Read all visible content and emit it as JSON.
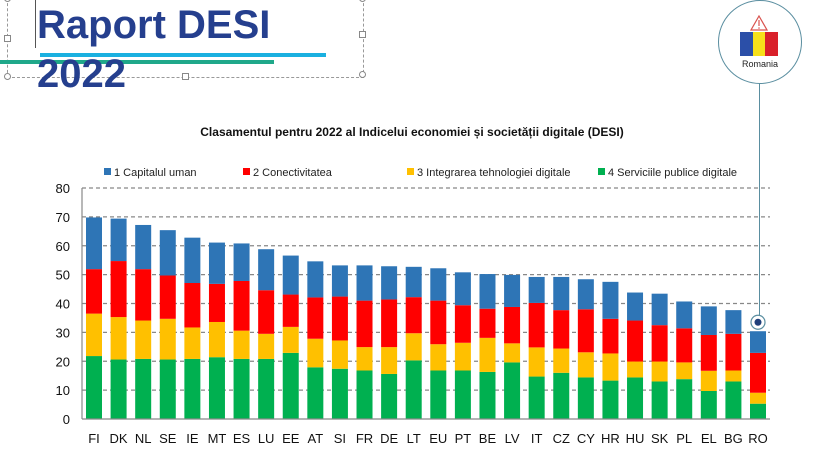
{
  "slide": {
    "title_line1": "Raport DESI",
    "title_line2": "2022",
    "title_color": "#253f8e"
  },
  "badge": {
    "label": "Romania",
    "icon": "warning-triangle-icon",
    "flag_colors": [
      "#2b4fa8",
      "#f7e01a",
      "#d9202a"
    ]
  },
  "chart_data": {
    "type": "bar",
    "stacked": true,
    "title": "Clasamentul pentru 2022 al Indicelui economiei și societății digitale (DESI)",
    "xlabel": "",
    "ylabel": "",
    "ylim": [
      0,
      80
    ],
    "yticks": [
      0,
      10,
      20,
      30,
      40,
      50,
      60,
      70,
      80
    ],
    "grid": true,
    "legend_position": "top",
    "categories": [
      "FI",
      "DK",
      "NL",
      "SE",
      "IE",
      "MT",
      "ES",
      "LU",
      "EE",
      "AT",
      "SI",
      "FR",
      "DE",
      "LT",
      "EU",
      "PT",
      "BE",
      "LV",
      "IT",
      "CZ",
      "CY",
      "HR",
      "HU",
      "SK",
      "PL",
      "EL",
      "BG",
      "RO"
    ],
    "series": [
      {
        "name": "4 Serviciile publice digitale",
        "color": "#00b050",
        "values": [
          21.8,
          20.6,
          20.8,
          20.6,
          20.8,
          21.4,
          20.8,
          20.8,
          22.9,
          17.9,
          17.4,
          16.8,
          15.6,
          20.3,
          16.8,
          16.8,
          16.3,
          19.6,
          14.7,
          16.0,
          14.4,
          13.3,
          14.4,
          13.0,
          13.8,
          9.7,
          13.0,
          5.3
        ]
      },
      {
        "name": "3 Integrarea tehnologiei digitale",
        "color": "#ffc000",
        "values": [
          14.7,
          14.7,
          13.3,
          14.1,
          10.9,
          12.2,
          9.8,
          8.7,
          9.0,
          9.9,
          9.8,
          8.1,
          9.3,
          9.4,
          9.1,
          9.6,
          11.8,
          6.6,
          10.1,
          8.4,
          8.7,
          9.4,
          5.5,
          6.9,
          5.8,
          7.0,
          3.8,
          3.8
        ]
      },
      {
        "name": "2 Conectivitatea",
        "color": "#ff0000",
        "values": [
          15.4,
          19.4,
          17.8,
          15.0,
          15.4,
          13.2,
          17.2,
          15.1,
          11.2,
          14.3,
          15.2,
          16.1,
          16.5,
          12.5,
          15.1,
          13.0,
          10.1,
          12.6,
          15.4,
          13.3,
          14.9,
          12.0,
          14.2,
          12.6,
          11.8,
          12.4,
          12.7,
          13.8
        ]
      },
      {
        "name": "1 Capitalul uman",
        "color": "#2e75b6",
        "values": [
          17.9,
          14.7,
          15.3,
          15.7,
          15.7,
          14.3,
          13.0,
          14.2,
          13.5,
          12.5,
          10.8,
          12.2,
          11.5,
          10.5,
          11.2,
          11.4,
          12.0,
          11.1,
          9.0,
          11.5,
          10.4,
          12.8,
          9.7,
          10.9,
          9.3,
          9.9,
          8.2,
          7.5
        ]
      }
    ],
    "legend_order": [
      "1 Capitalul uman",
      "2 Conectivitatea",
      "3 Integrarea tehnologiei digitale",
      "4 Serviciile publice digitale"
    ],
    "highlighted_category": "RO"
  }
}
